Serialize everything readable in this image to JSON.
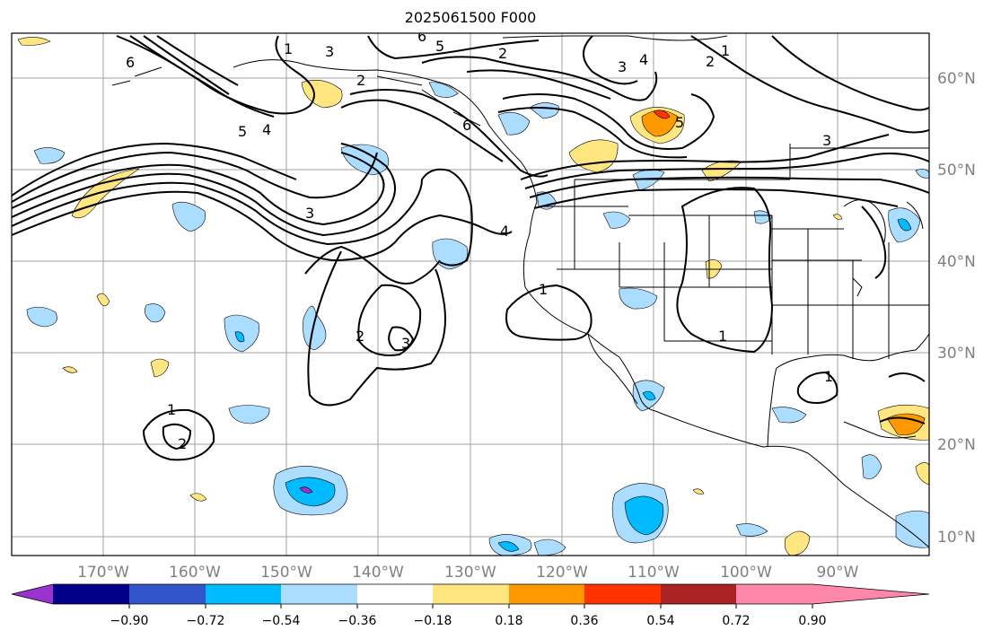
{
  "title": "2025061500 F000",
  "lon_labels": [
    "170°W",
    "160°W",
    "150°W",
    "140°W",
    "130°W",
    "120°W",
    "110°W",
    "100°W",
    "90°W"
  ],
  "lat_labels": [
    "60°N",
    "50°N",
    "40°N",
    "30°N",
    "20°N",
    "10°N"
  ],
  "contour_labels": [
    "1",
    "2",
    "3",
    "4",
    "5",
    "6"
  ],
  "colorbar": {
    "ticks": [
      "−0.90",
      "−0.72",
      "−0.54",
      "−0.36",
      "−0.18",
      "0.18",
      "0.36",
      "0.54",
      "0.72",
      "0.90"
    ],
    "colors": [
      "#9933cc",
      "#000088",
      "#3355cc",
      "#00bbff",
      "#aaddff",
      "#ffffff",
      "#ffe680",
      "#ff9900",
      "#ff3300",
      "#aa2222",
      "#ff88aa"
    ]
  }
}
